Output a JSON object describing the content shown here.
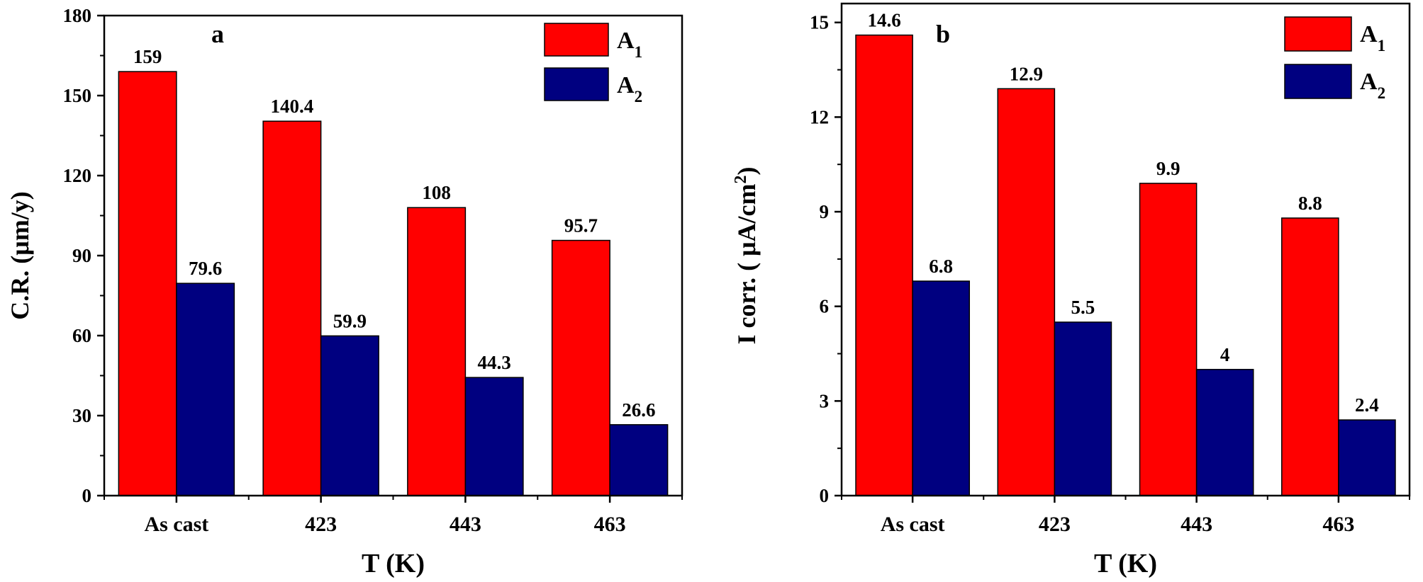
{
  "colors": {
    "A1": "#ff0000",
    "A2": "#000080",
    "axis": "#000000"
  },
  "chart_data": [
    {
      "type": "bar",
      "panel_label": "a",
      "categories": [
        "As cast",
        "423",
        "443",
        "463"
      ],
      "series": [
        {
          "name": "A",
          "subscript": "1",
          "values": [
            159,
            140.4,
            108,
            95.7
          ],
          "labels": [
            "159",
            "140.4",
            "108",
            "95.7"
          ]
        },
        {
          "name": "A",
          "subscript": "2",
          "values": [
            79.6,
            59.9,
            44.3,
            26.6
          ],
          "labels": [
            "79.6",
            "59.9",
            "44.3",
            "26.6"
          ]
        }
      ],
      "xlabel": "T (K)",
      "ylabel": "C.R. (μm/y)",
      "ylabel_parts": {
        "main": "C.R. (μm/y)",
        "sup": ""
      },
      "ylim": [
        0,
        180
      ],
      "yticks": [
        0,
        30,
        60,
        90,
        120,
        150,
        180
      ],
      "legend": "top-right"
    },
    {
      "type": "bar",
      "panel_label": "b",
      "categories": [
        "As cast",
        "423",
        "443",
        "463"
      ],
      "series": [
        {
          "name": "A",
          "subscript": "1",
          "values": [
            14.6,
            12.9,
            9.9,
            8.8
          ],
          "labels": [
            "14.6",
            "12.9",
            "9.9",
            "8.8"
          ]
        },
        {
          "name": "A",
          "subscript": "2",
          "values": [
            6.8,
            5.5,
            4,
            2.4
          ],
          "labels": [
            "6.8",
            "5.5",
            "4",
            "2.4"
          ]
        }
      ],
      "xlabel": "T (K)",
      "ylabel": "I corr. ( μA/cm2)",
      "ylabel_parts": {
        "main": "I corr. ( μA/cm",
        "sup": "2",
        "tail": ")"
      },
      "ylim": [
        0,
        15.6
      ],
      "yticks": [
        0,
        3,
        6,
        9,
        12,
        15
      ],
      "legend": "top-right"
    }
  ]
}
